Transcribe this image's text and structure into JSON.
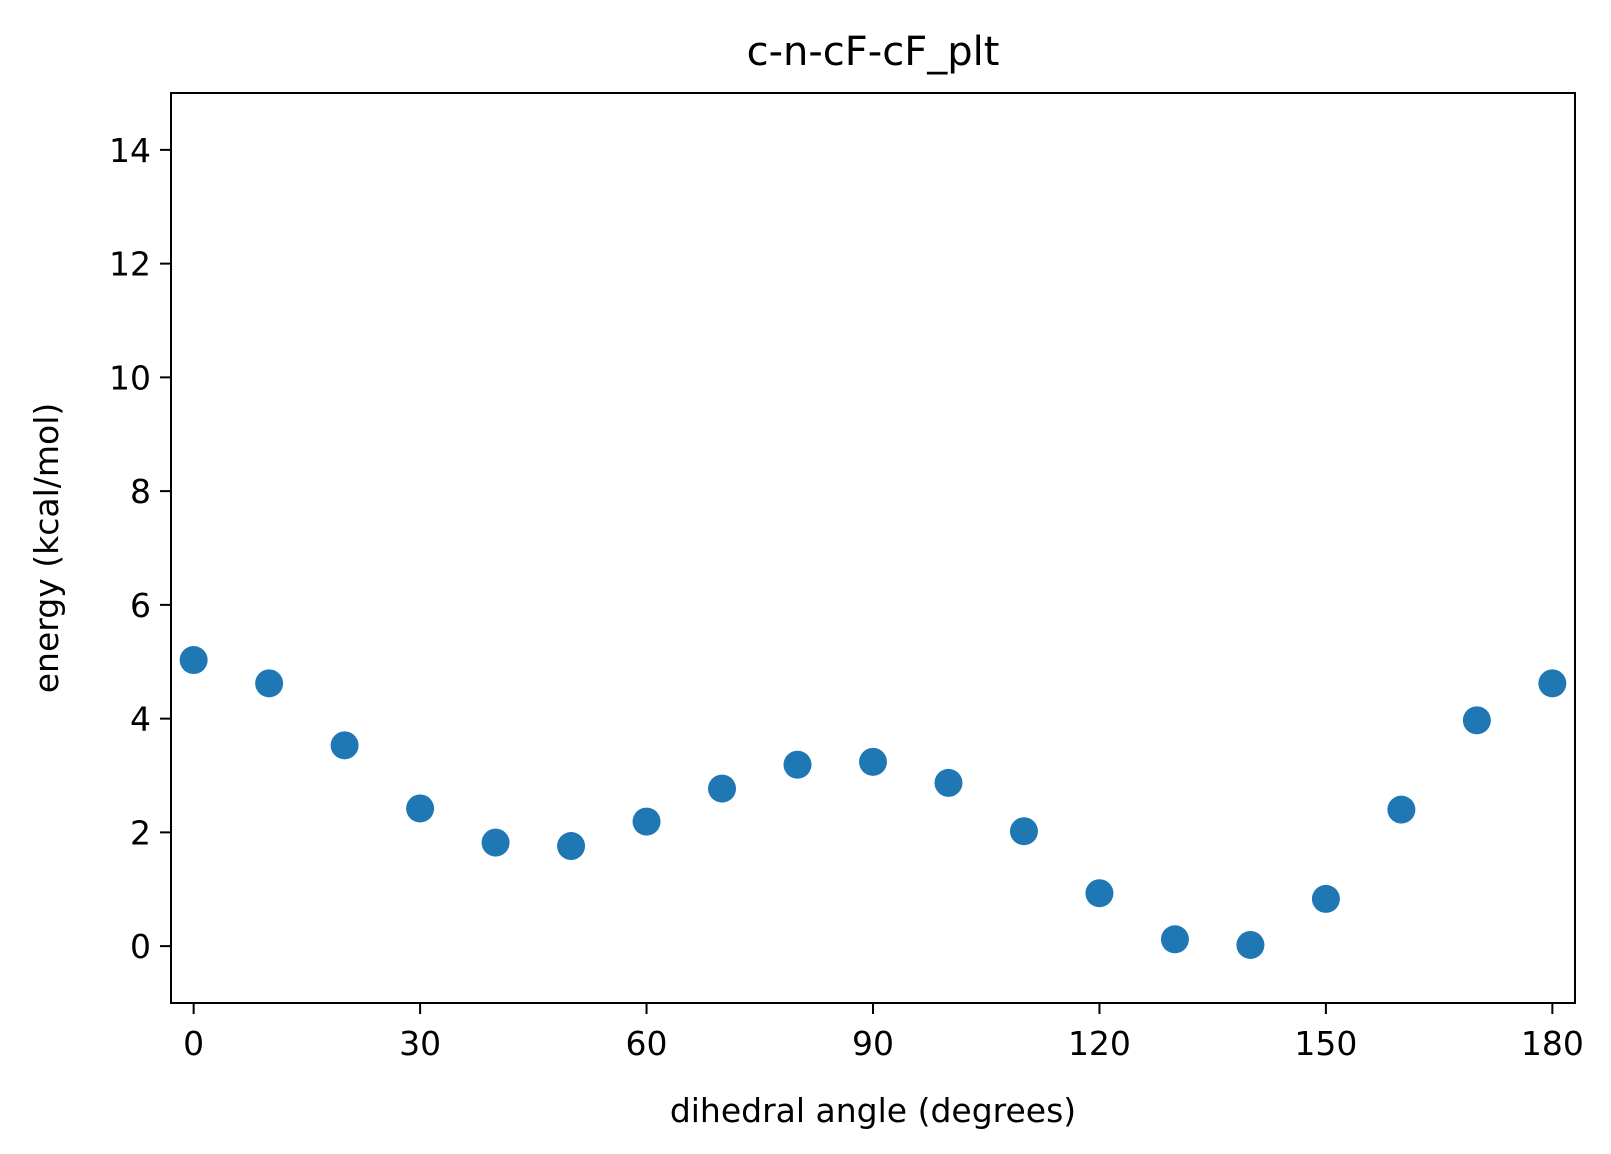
{
  "chart_data": {
    "type": "scatter",
    "title": "c-n-cF-cF_plt",
    "xlabel": "dihedral angle (degrees)",
    "ylabel": "energy (kcal/mol)",
    "xlim": [
      -3,
      183
    ],
    "ylim": [
      -1,
      15
    ],
    "xticks": [
      0,
      30,
      60,
      90,
      120,
      150,
      180
    ],
    "xtick_labels": [
      "0",
      "30",
      "60",
      "90",
      "120",
      "150",
      "180"
    ],
    "yticks": [
      0,
      2,
      4,
      6,
      8,
      10,
      12,
      14
    ],
    "ytick_labels": [
      "0",
      "2",
      "4",
      "6",
      "8",
      "10",
      "12",
      "14"
    ],
    "grid": false,
    "series": [
      {
        "color": "#1f77b4",
        "x": [
          0,
          10,
          20,
          30,
          40,
          50,
          60,
          70,
          80,
          90,
          100,
          110,
          120,
          130,
          140,
          150,
          160,
          170,
          180
        ],
        "y": [
          5.03,
          4.62,
          3.53,
          2.42,
          1.82,
          1.76,
          2.19,
          2.77,
          3.19,
          3.24,
          2.87,
          2.02,
          0.93,
          0.12,
          0.02,
          0.83,
          2.4,
          3.97,
          4.62
        ]
      }
    ]
  }
}
